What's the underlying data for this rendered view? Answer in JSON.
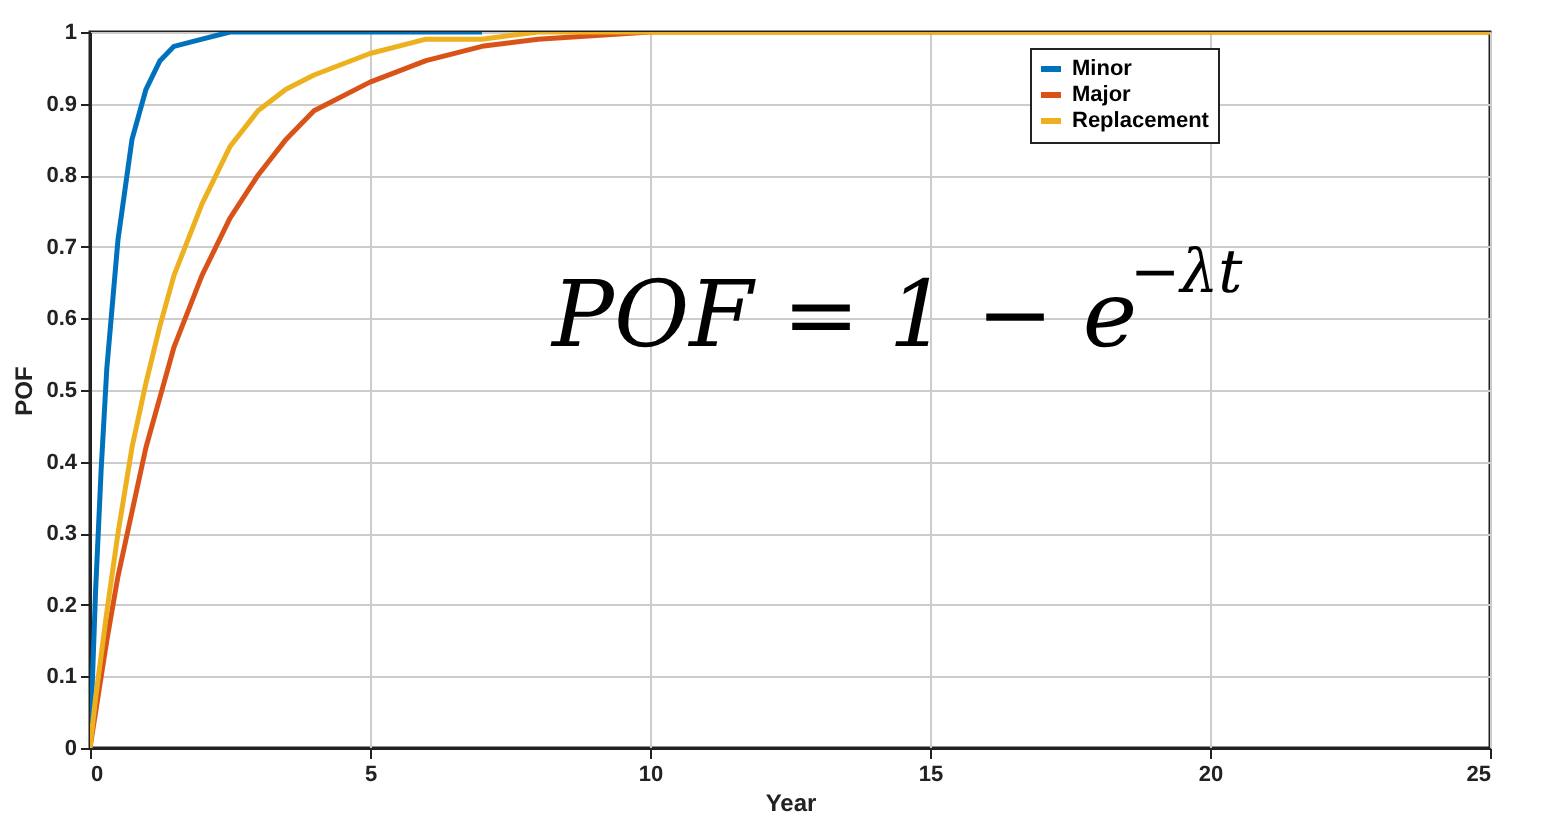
{
  "chart_data": {
    "type": "line",
    "xlabel": "Year",
    "ylabel": "POF",
    "x": [
      0,
      0.1,
      0.2,
      0.3,
      0.5,
      0.75,
      1,
      1.25,
      1.5,
      2,
      2.5,
      3,
      3.5,
      4,
      5,
      6,
      7,
      8,
      10,
      12,
      15,
      20,
      25
    ],
    "series": [
      {
        "name": "Minor",
        "color": "#0072bd",
        "values": [
          0,
          0.22,
          0.39,
          0.53,
          0.71,
          0.85,
          0.92,
          0.96,
          0.98,
          0.99,
          1,
          1,
          1,
          1,
          1,
          1,
          1,
          null,
          null,
          null,
          null,
          null,
          null
        ]
      },
      {
        "name": "Major",
        "color": "#d95319",
        "values": [
          0,
          0.05,
          0.1,
          0.15,
          0.24,
          0.33,
          0.42,
          0.49,
          0.56,
          0.66,
          0.74,
          0.8,
          0.85,
          0.89,
          0.93,
          0.96,
          0.98,
          0.99,
          1,
          1,
          1,
          1,
          1
        ]
      },
      {
        "name": "Replacement",
        "color": "#edb120",
        "values": [
          0,
          0.07,
          0.13,
          0.19,
          0.3,
          0.42,
          0.51,
          0.59,
          0.66,
          0.76,
          0.84,
          0.89,
          0.92,
          0.94,
          0.97,
          0.99,
          0.99,
          1,
          1,
          1,
          1,
          1,
          1
        ]
      }
    ],
    "xlim": [
      0,
      25
    ],
    "xticks": [
      0,
      5,
      10,
      15,
      20,
      25
    ],
    "ylim": [
      0,
      1
    ],
    "yticks": [
      0,
      0.1,
      0.2,
      0.3,
      0.4,
      0.5,
      0.6,
      0.7,
      0.8,
      0.9,
      1
    ],
    "grid": true,
    "legend": "top right",
    "line_style": "solid",
    "marker": "none",
    "annotations": [
      "POF = 1 − e$^{−λt}$"
    ]
  }
}
